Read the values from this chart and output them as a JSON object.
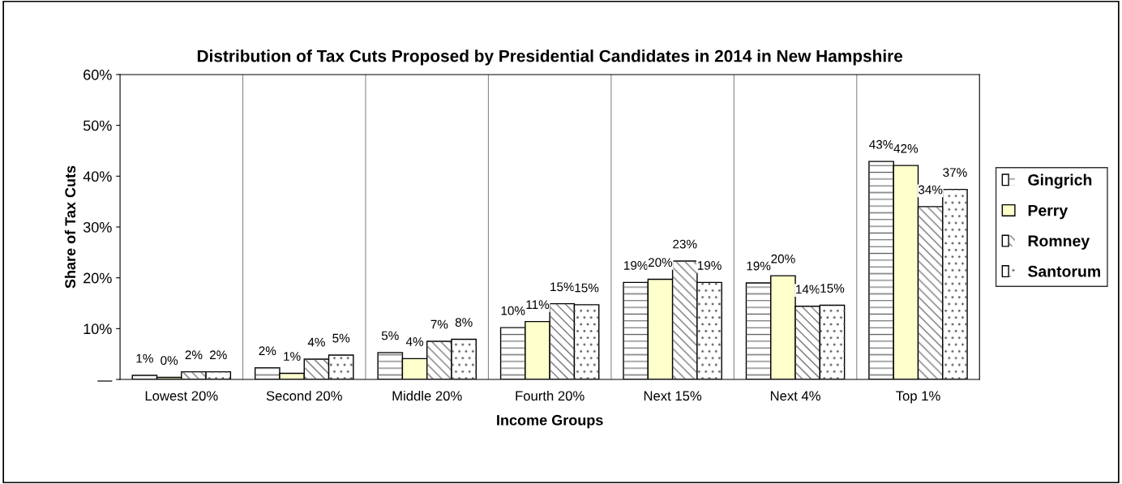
{
  "chart_data": {
    "type": "bar",
    "title": "Distribution of Tax Cuts Proposed by Presidential Candidates in 2014 in New Hampshire",
    "xlabel": "Income Groups",
    "ylabel": "Share of Tax Cuts",
    "categories": [
      "Lowest 20%",
      "Second 20%",
      "Middle 20%",
      "Fourth 20%",
      "Next 15%",
      "Next 4%",
      "Top 1%"
    ],
    "series": [
      {
        "name": "Gingrich",
        "color": "#ffffff",
        "values": [
          0.8,
          2.3,
          5.3,
          10.2,
          19.1,
          19.0,
          42.9
        ],
        "value_labels": [
          "1%",
          "2%",
          "5%",
          "10%",
          "19%",
          "19%",
          "43%"
        ]
      },
      {
        "name": "Perry",
        "color": "#ffffcc",
        "values": [
          0.4,
          1.2,
          4.1,
          11.4,
          19.7,
          20.4,
          42.1
        ],
        "value_labels": [
          "0%",
          "1%",
          "4%",
          "11%",
          "20%",
          "20%",
          "42%"
        ]
      },
      {
        "name": "Romney",
        "color": "#ffffff",
        "values": [
          1.5,
          4.0,
          7.5,
          14.9,
          23.3,
          14.4,
          34.0
        ],
        "value_labels": [
          "2%",
          "4%",
          "7%",
          "15%",
          "23%",
          "14%",
          "34%"
        ]
      },
      {
        "name": "Santorum",
        "color": "#ffffff",
        "values": [
          1.5,
          4.8,
          7.9,
          14.7,
          19.1,
          14.6,
          37.4
        ],
        "value_labels": [
          "2%",
          "5%",
          "8%",
          "15%",
          "19%",
          "15%",
          "37%"
        ]
      }
    ],
    "ylim": [
      0,
      60
    ],
    "yticks": [
      {
        "value": 0,
        "label": "—"
      },
      {
        "value": 10,
        "label": "10%"
      },
      {
        "value": 20,
        "label": "20%"
      },
      {
        "value": 30,
        "label": "30%"
      },
      {
        "value": 40,
        "label": "40%"
      },
      {
        "value": 50,
        "label": "50%"
      },
      {
        "value": 60,
        "label": "60%"
      }
    ],
    "grid": "x",
    "legend": "right"
  }
}
